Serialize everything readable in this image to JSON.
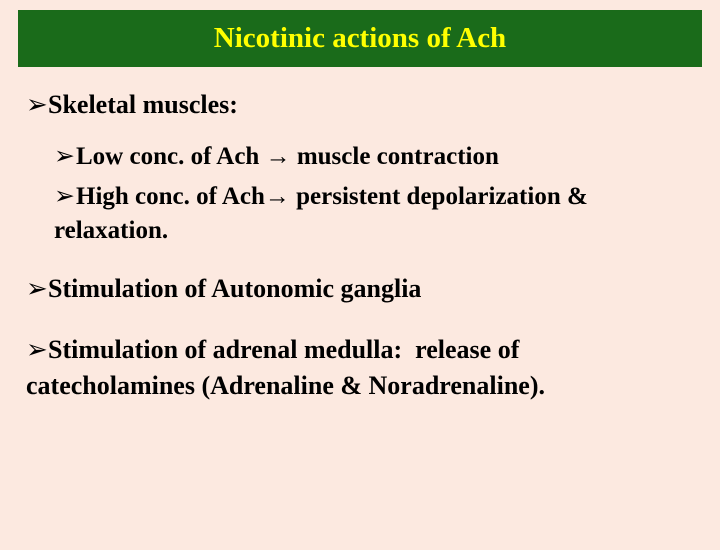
{
  "title": "Nicotinic actions of Ach",
  "section1": {
    "heading": "Skeletal muscles:",
    "sub1_prefix": "Low conc. of Ach ",
    "sub1_arrow": "→",
    "sub1_suffix": " muscle contraction",
    "sub2_prefix": "High conc. of Ach",
    "sub2_arrow": "→",
    "sub2_suffix": " persistent depolarization & relaxation."
  },
  "section2": {
    "heading": "Stimulation of Autonomic ganglia"
  },
  "section3": {
    "heading": "Stimulation of adrenal medulla:",
    "body": "release of catecholamines (Adrenaline & Noradrenaline)."
  },
  "bullet_char": "➢",
  "colors": {
    "title_bg": "#1a6b1a",
    "title_fg": "#ffff00",
    "page_bg": "#fce9e0",
    "text": "#000000"
  }
}
